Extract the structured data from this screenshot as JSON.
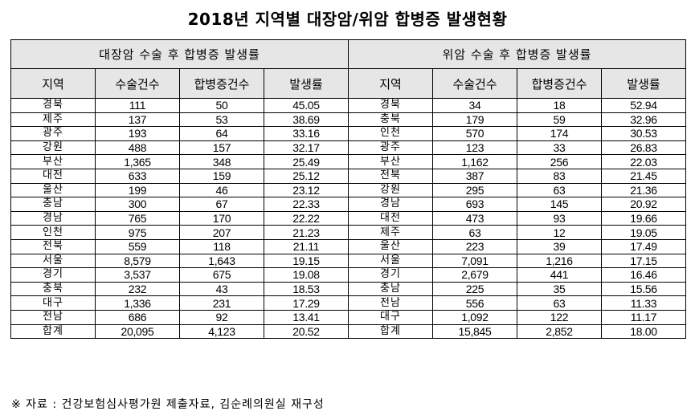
{
  "title": "2018년 지역별 대장암/위암 합병증 발생현황",
  "groups": {
    "colorectal": "대장암 수술 후 합병증 발생률",
    "stomach": "위암 수술 후 합병증 발생률"
  },
  "columns": [
    "지역",
    "수술건수",
    "합병증건수",
    "발생률"
  ],
  "colors": {
    "header_bg": "#e6e6e6",
    "border": "#000000"
  },
  "colorectal_rows": [
    [
      "경북",
      "111",
      "50",
      "45.05"
    ],
    [
      "제주",
      "137",
      "53",
      "38.69"
    ],
    [
      "광주",
      "193",
      "64",
      "33.16"
    ],
    [
      "강원",
      "488",
      "157",
      "32.17"
    ],
    [
      "부산",
      "1,365",
      "348",
      "25.49"
    ],
    [
      "대전",
      "633",
      "159",
      "25.12"
    ],
    [
      "울산",
      "199",
      "46",
      "23.12"
    ],
    [
      "충남",
      "300",
      "67",
      "22.33"
    ],
    [
      "경남",
      "765",
      "170",
      "22.22"
    ],
    [
      "인천",
      "975",
      "207",
      "21.23"
    ],
    [
      "전북",
      "559",
      "118",
      "21.11"
    ],
    [
      "서울",
      "8,579",
      "1,643",
      "19.15"
    ],
    [
      "경기",
      "3,537",
      "675",
      "19.08"
    ],
    [
      "충북",
      "232",
      "43",
      "18.53"
    ],
    [
      "대구",
      "1,336",
      "231",
      "17.29"
    ],
    [
      "전남",
      "686",
      "92",
      "13.41"
    ],
    [
      "합계",
      "20,095",
      "4,123",
      "20.52"
    ]
  ],
  "stomach_rows": [
    [
      "경북",
      "34",
      "18",
      "52.94"
    ],
    [
      "충북",
      "179",
      "59",
      "32.96"
    ],
    [
      "인천",
      "570",
      "174",
      "30.53"
    ],
    [
      "광주",
      "123",
      "33",
      "26.83"
    ],
    [
      "부산",
      "1,162",
      "256",
      "22.03"
    ],
    [
      "전북",
      "387",
      "83",
      "21.45"
    ],
    [
      "강원",
      "295",
      "63",
      "21.36"
    ],
    [
      "경남",
      "693",
      "145",
      "20.92"
    ],
    [
      "대전",
      "473",
      "93",
      "19.66"
    ],
    [
      "제주",
      "63",
      "12",
      "19.05"
    ],
    [
      "울산",
      "223",
      "39",
      "17.49"
    ],
    [
      "서울",
      "7,091",
      "1,216",
      "17.15"
    ],
    [
      "경기",
      "2,679",
      "441",
      "16.46"
    ],
    [
      "충남",
      "225",
      "35",
      "15.56"
    ],
    [
      "전남",
      "556",
      "63",
      "11.33"
    ],
    [
      "대구",
      "1,092",
      "122",
      "11.17"
    ],
    [
      "합계",
      "15,845",
      "2,852",
      "18.00"
    ]
  ],
  "footnote": "※ 자료 : 건강보험심사평가원 제출자료, 김순례의원실 재구성"
}
